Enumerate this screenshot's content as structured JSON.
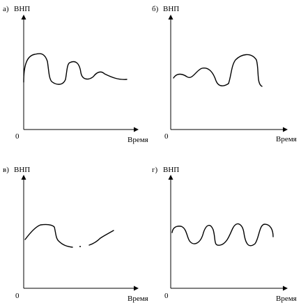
{
  "panels": [
    {
      "letter": "а)",
      "ylabel": "ВНП",
      "xlabel": "Время",
      "origin": "0"
    },
    {
      "letter": "б)",
      "ylabel": "ВНП",
      "xlabel": "Время",
      "origin": "0"
    },
    {
      "letter": "в)",
      "ylabel": "ВНП",
      "xlabel": "Время",
      "origin": "0"
    },
    {
      "letter": "г)",
      "ylabel": "ВНП",
      "xlabel": "Время",
      "origin": "0"
    }
  ]
}
